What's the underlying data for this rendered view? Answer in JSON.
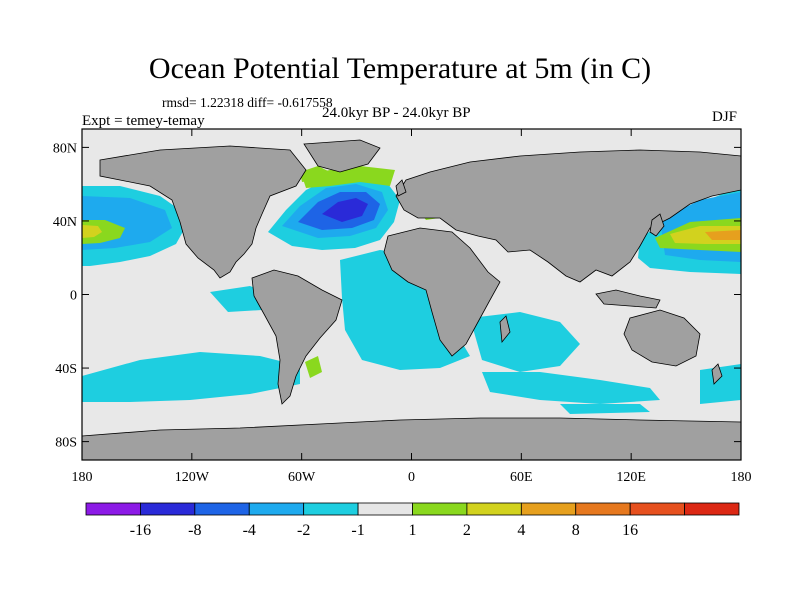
{
  "title": "Ocean Potential Temperature at 5m (in C)",
  "stats": "rmsd= 1.22318 diff= -0.617558",
  "period": "24.0kyr BP - 24.0kyr BP",
  "experiment": "Expt = temey-temay",
  "season": "DJF",
  "map": {
    "lon_range": [
      -180,
      180
    ],
    "lat_range": [
      -90,
      90
    ],
    "land_color": "#a0a0a0",
    "ocean_neutral_color": "#e8e8e8",
    "lon_ticks": [
      {
        "value": -180,
        "label": "180"
      },
      {
        "value": -120,
        "label": "120W"
      },
      {
        "value": -60,
        "label": "60W"
      },
      {
        "value": 0,
        "label": "0"
      },
      {
        "value": 60,
        "label": "60E"
      },
      {
        "value": 120,
        "label": "120E"
      },
      {
        "value": 180,
        "label": "180"
      }
    ],
    "lat_ticks": [
      {
        "value": 80,
        "label": "80N"
      },
      {
        "value": 40,
        "label": "40N"
      },
      {
        "value": 0,
        "label": "0"
      },
      {
        "value": -40,
        "label": "40S"
      },
      {
        "value": -80,
        "label": "80S"
      }
    ]
  },
  "colorbar": {
    "colors": [
      "#8c1ae6",
      "#2a2ad8",
      "#1e64e6",
      "#1eaaee",
      "#1ecee0",
      "#e6e6e6",
      "#8ad81e",
      "#d2d21e",
      "#e6a01e",
      "#e6781e",
      "#e6501e",
      "#dc2814"
    ],
    "labels": [
      "-16",
      "-8",
      "-4",
      "-2",
      "-1",
      "1",
      "2",
      "4",
      "8",
      "16"
    ]
  }
}
